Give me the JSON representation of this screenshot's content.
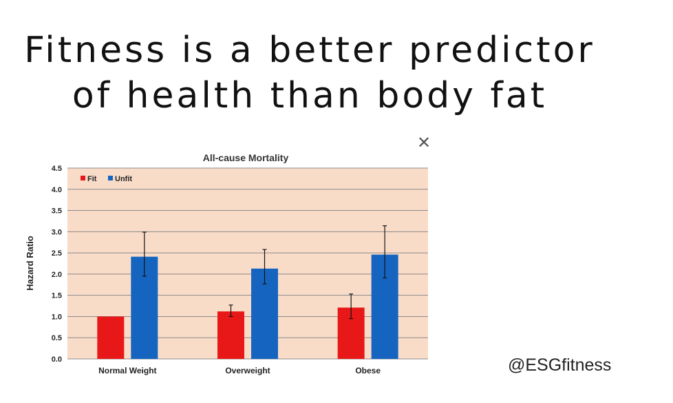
{
  "headline": {
    "line1": "Fitness is a better predictor",
    "line2": "of health than body fat"
  },
  "close": {
    "symbol": "✕",
    "icon": "close-icon"
  },
  "handle": "@ESGfitness",
  "colors": {
    "fit": "#e81818",
    "unfit": "#1565c0",
    "plot_bg": "#f9dcc8",
    "grid": "#8a8a8a"
  },
  "chart_data": {
    "type": "bar",
    "title": "All-cause Mortality",
    "xlabel": "",
    "ylabel": "Hazard Ratio",
    "ylim": [
      0,
      4.5
    ],
    "yticks": [
      "0.0",
      "0.5",
      "1.0",
      "1.5",
      "2.0",
      "2.5",
      "3.0",
      "3.5",
      "4.0",
      "4.5"
    ],
    "categories": [
      "Normal Weight",
      "Overweight",
      "Obese"
    ],
    "series": [
      {
        "name": "Fit",
        "values": [
          1.0,
          1.12,
          1.21
        ],
        "error_low": [
          null,
          1.0,
          0.95
        ],
        "error_high": [
          null,
          1.27,
          1.53
        ]
      },
      {
        "name": "Unfit",
        "values": [
          2.41,
          2.13,
          2.46
        ],
        "error_low": [
          1.95,
          1.77,
          1.91
        ],
        "error_high": [
          2.99,
          2.58,
          3.14
        ]
      }
    ],
    "legend": "top-left",
    "grid": true
  }
}
